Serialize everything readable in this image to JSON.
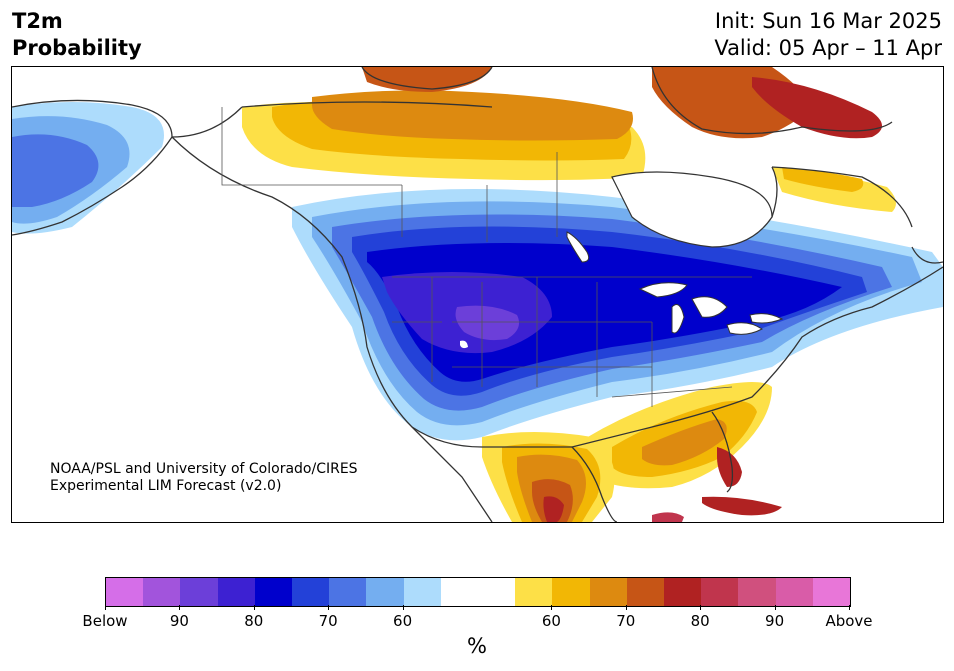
{
  "title": {
    "line1": "T2m",
    "line2": "Probability"
  },
  "header_right": {
    "init": "Init: Sun 16 Mar 2025",
    "valid": "Valid: 05 Apr – 11 Apr"
  },
  "credit": {
    "line1": "NOAA/PSL and University of Colorado/CIRES",
    "line2": "Experimental LIM Forecast (v2.0)"
  },
  "colorbar": {
    "unit": "%",
    "tick_labels": [
      "Below",
      "90",
      "80",
      "70",
      "60",
      "60",
      "70",
      "80",
      "90",
      "Above"
    ],
    "colors": [
      "#d56ee8",
      "#a254dc",
      "#6c3fd9",
      "#3d21d2",
      "#0000cc",
      "#2341d8",
      "#4c74e4",
      "#74aef0",
      "#addcfc",
      "#ffffff",
      "#ffffff",
      "#fde047",
      "#f2b705",
      "#dd8a10",
      "#c65516",
      "#b02222",
      "#c0354d",
      "#d0507e",
      "#d95ca8",
      "#e876d8"
    ]
  },
  "map": {
    "colors": {
      "below_strong": "#0000cc",
      "below_core": "#3d21d2",
      "below_deep": "#6c3fd9",
      "below_mid": "#2341d8",
      "below_light": "#4c74e4",
      "below_pale": "#74aef0",
      "below_faint": "#addcfc",
      "above_faint": "#fde047",
      "above_light": "#f2b705",
      "above_mid": "#dd8a10",
      "above_strong": "#c65516",
      "above_deep": "#b02222",
      "above_core": "#c0354d",
      "land_outline": "#333333"
    }
  }
}
